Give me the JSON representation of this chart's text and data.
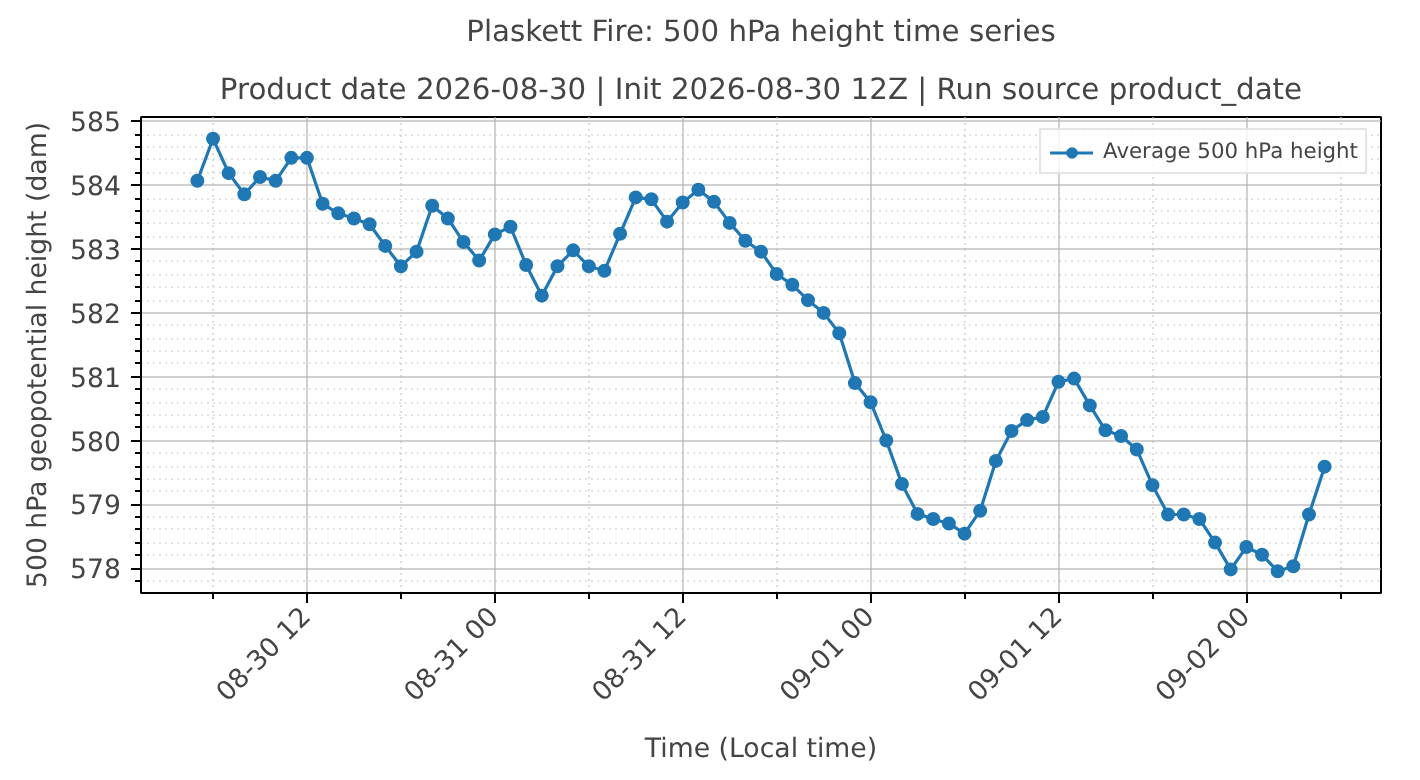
{
  "chart_data": {
    "type": "line",
    "title": "Plaskett Fire: 500 hPa height time series",
    "subtitle": "Product date 2026-08-30 | Init 2026-08-30 12Z | Run source product_date",
    "xlabel": "Time (Local time)",
    "ylabel": "500 hPa geopotential height (dam)",
    "x": [
      "2026-08-30T05:00",
      "2026-08-30T06:00",
      "2026-08-30T07:00",
      "2026-08-30T08:00",
      "2026-08-30T09:00",
      "2026-08-30T10:00",
      "2026-08-30T11:00",
      "2026-08-30T12:00",
      "2026-08-30T13:00",
      "2026-08-30T14:00",
      "2026-08-30T15:00",
      "2026-08-30T16:00",
      "2026-08-30T17:00",
      "2026-08-30T18:00",
      "2026-08-30T19:00",
      "2026-08-30T20:00",
      "2026-08-30T21:00",
      "2026-08-30T22:00",
      "2026-08-30T23:00",
      "2026-08-31T00:00",
      "2026-08-31T01:00",
      "2026-08-31T02:00",
      "2026-08-31T03:00",
      "2026-08-31T04:00",
      "2026-08-31T05:00",
      "2026-08-31T06:00",
      "2026-08-31T07:00",
      "2026-08-31T08:00",
      "2026-08-31T09:00",
      "2026-08-31T10:00",
      "2026-08-31T11:00",
      "2026-08-31T12:00",
      "2026-08-31T13:00",
      "2026-08-31T14:00",
      "2026-08-31T15:00",
      "2026-08-31T16:00",
      "2026-08-31T17:00",
      "2026-08-31T18:00",
      "2026-08-31T19:00",
      "2026-08-31T20:00",
      "2026-08-31T21:00",
      "2026-08-31T22:00",
      "2026-08-31T23:00",
      "2026-09-01T00:00",
      "2026-09-01T01:00",
      "2026-09-01T02:00",
      "2026-09-01T03:00",
      "2026-09-01T04:00",
      "2026-09-01T05:00",
      "2026-09-01T06:00",
      "2026-09-01T07:00",
      "2026-09-01T08:00",
      "2026-09-01T09:00",
      "2026-09-01T10:00",
      "2026-09-01T11:00",
      "2026-09-01T12:00",
      "2026-09-01T13:00",
      "2026-09-01T14:00",
      "2026-09-01T15:00",
      "2026-09-01T16:00",
      "2026-09-01T17:00",
      "2026-09-01T18:00",
      "2026-09-01T19:00",
      "2026-09-01T20:00",
      "2026-09-01T21:00",
      "2026-09-01T22:00",
      "2026-09-01T23:00",
      "2026-09-02T00:00",
      "2026-09-02T01:00",
      "2026-09-02T02:00",
      "2026-09-02T03:00",
      "2026-09-02T04:00",
      "2026-09-02T05:00"
    ],
    "series": [
      {
        "name": "Average 500 hPa height",
        "color": "#1f77b4",
        "values": [
          584.07,
          584.73,
          584.19,
          583.86,
          584.13,
          584.07,
          584.43,
          584.43,
          583.71,
          583.56,
          583.48,
          583.39,
          583.05,
          582.73,
          582.96,
          583.68,
          583.48,
          583.11,
          582.82,
          583.23,
          583.35,
          582.75,
          582.27,
          582.73,
          582.98,
          582.73,
          582.66,
          583.24,
          583.81,
          583.78,
          583.43,
          583.73,
          583.93,
          583.74,
          583.41,
          583.13,
          582.96,
          582.61,
          582.44,
          582.2,
          582.0,
          581.68,
          580.9,
          580.6,
          580.0,
          579.32,
          578.85,
          578.77,
          578.7,
          578.54,
          578.9,
          579.68,
          580.15,
          580.32,
          580.37,
          580.92,
          580.97,
          580.55,
          580.16,
          580.07,
          579.86,
          579.3,
          578.84,
          578.84,
          578.77,
          578.4,
          577.98,
          578.33,
          578.21,
          577.95,
          578.03,
          578.84,
          579.59
        ]
      }
    ],
    "xlim": [
      "2026-08-30T01:24",
      "2026-09-02T08:36"
    ],
    "xticks": [
      {
        "value": "2026-08-30T06:00",
        "label": null
      },
      {
        "value": "2026-08-30T12:00",
        "label": "08-30 12"
      },
      {
        "value": "2026-08-30T18:00",
        "label": null
      },
      {
        "value": "2026-08-31T00:00",
        "label": "08-31 00"
      },
      {
        "value": "2026-08-31T06:00",
        "label": null
      },
      {
        "value": "2026-08-31T12:00",
        "label": "08-31 12"
      },
      {
        "value": "2026-08-31T18:00",
        "label": null
      },
      {
        "value": "2026-09-01T00:00",
        "label": "09-01 00"
      },
      {
        "value": "2026-09-01T06:00",
        "label": null
      },
      {
        "value": "2026-09-01T12:00",
        "label": "09-01 12"
      },
      {
        "value": "2026-09-01T18:00",
        "label": null
      },
      {
        "value": "2026-09-02T00:00",
        "label": "09-02 00"
      },
      {
        "value": "2026-09-02T06:00",
        "label": null
      }
    ],
    "ylim": [
      577.61,
      585.07
    ],
    "yticks": [
      {
        "value": 577.8,
        "label": null
      },
      578,
      {
        "value": 578.2,
        "label": null
      },
      {
        "value": 578.4,
        "label": null
      },
      {
        "value": 578.6,
        "label": null
      },
      {
        "value": 578.8,
        "label": null
      },
      579,
      {
        "value": 579.2,
        "label": null
      },
      {
        "value": 579.4,
        "label": null
      },
      {
        "value": 579.6,
        "label": null
      },
      {
        "value": 579.8,
        "label": null
      },
      580,
      {
        "value": 580.2,
        "label": null
      },
      {
        "value": 580.4,
        "label": null
      },
      {
        "value": 580.6,
        "label": null
      },
      {
        "value": 580.8,
        "label": null
      },
      581,
      {
        "value": 581.2,
        "label": null
      },
      {
        "value": 581.4,
        "label": null
      },
      {
        "value": 581.6,
        "label": null
      },
      {
        "value": 581.8,
        "label": null
      },
      582,
      {
        "value": 582.2,
        "label": null
      },
      {
        "value": 582.4,
        "label": null
      },
      {
        "value": 582.6,
        "label": null
      },
      {
        "value": 582.8,
        "label": null
      },
      583,
      {
        "value": 583.2,
        "label": null
      },
      {
        "value": 583.4,
        "label": null
      },
      {
        "value": 583.6,
        "label": null
      },
      {
        "value": 583.8,
        "label": null
      },
      584,
      {
        "value": 584.2,
        "label": null
      },
      {
        "value": 584.4,
        "label": null
      },
      {
        "value": 584.6,
        "label": null
      },
      {
        "value": 584.8,
        "label": null
      },
      585
    ],
    "grid": true,
    "legend": "top right",
    "marker": "circle",
    "line_style": "solid"
  }
}
